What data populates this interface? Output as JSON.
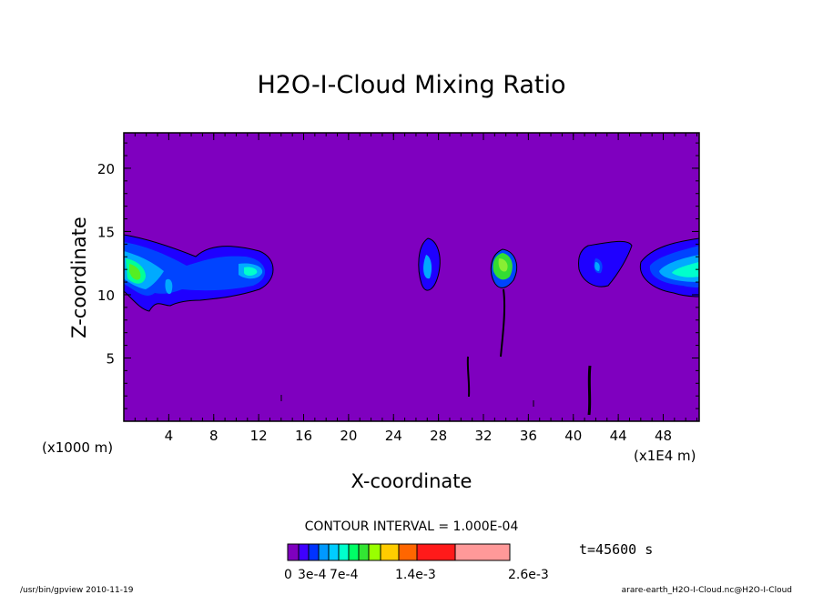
{
  "chart_data": {
    "type": "heatmap",
    "title": "H2O-I-Cloud Mixing Ratio",
    "xlabel": "X-coordinate",
    "ylabel": "Z-coordinate",
    "x_unit_left": "(x1000 m)",
    "x_unit_right": "(x1E4 m)",
    "x_ticks": [
      "4",
      "8",
      "12",
      "16",
      "20",
      "24",
      "28",
      "32",
      "36",
      "40",
      "44",
      "48"
    ],
    "y_ticks": [
      "5",
      "10",
      "15",
      "20"
    ],
    "xlim": [
      0,
      51.2
    ],
    "ylim": [
      0,
      22.8
    ],
    "contour_interval_text": "CONTOUR INTERVAL = 1.000E-04",
    "time_text": "t=45600 s",
    "colorbar_labels": [
      "0",
      "3e-4",
      "7e-4",
      "1.4e-3",
      "2.6e-3"
    ],
    "colorbar_colors": [
      "#7f00bf",
      "#3f00ff",
      "#0033ff",
      "#0099ff",
      "#00ccff",
      "#00ffcc",
      "#00ff66",
      "#33e633",
      "#99ff00",
      "#ffcc00",
      "#ff6600",
      "#ff1a1a",
      "#ff9999"
    ],
    "regions": [
      {
        "x": 1.0,
        "z": 11.5,
        "level": 6
      },
      {
        "x": 4.0,
        "z": 11.0,
        "level": 3
      },
      {
        "x": 11.0,
        "z": 12.2,
        "level": 4
      },
      {
        "x": 27.0,
        "z": 12.3,
        "level": 4
      },
      {
        "x": 33.5,
        "z": 12.0,
        "level": 7
      },
      {
        "x": 42.0,
        "z": 12.4,
        "level": 3
      },
      {
        "x": 50.0,
        "z": 11.8,
        "level": 5
      }
    ]
  },
  "footer": {
    "left": "/usr/bin/gpview   2010-11-19",
    "right": "arare-earth_H2O-I-Cloud.nc@H2O-I-Cloud"
  }
}
